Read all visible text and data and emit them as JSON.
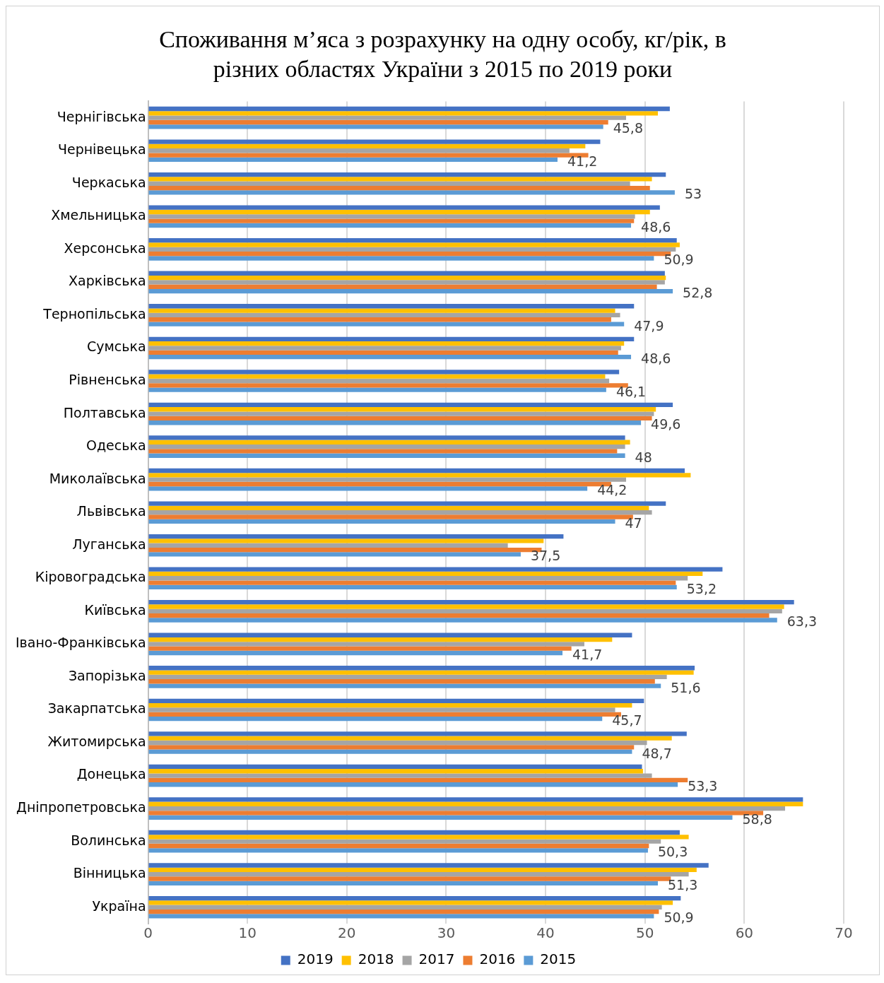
{
  "chart_data": {
    "type": "bar",
    "orientation": "horizontal",
    "title": "Споживання м’яса з розрахунку на одну особу, кг/рік, в різних областях України з 2015 по 2019 роки",
    "categories": [
      "Чернігівська",
      "Чернівецька",
      "Черкаська",
      "Хмельницька",
      "Херсонська",
      "Харківська",
      "Тернопільська",
      "Сумська",
      "Рівненська",
      "Полтавська",
      "Одеська",
      "Миколаївська",
      "Львівська",
      "Луганська",
      "Кіровоградська",
      "Київська",
      "Івано-Франківська",
      "Запорізька",
      "Закарпатська",
      "Житомирська",
      "Донецька",
      "Дніпропетровська",
      "Волинська",
      "Вінницька",
      "Україна"
    ],
    "series": [
      {
        "name": "2019",
        "color": "#4472c4",
        "values": [
          52.5,
          45.5,
          52.1,
          51.5,
          53.2,
          52.0,
          48.9,
          48.9,
          47.4,
          52.8,
          48.0,
          54.0,
          52.1,
          41.8,
          57.8,
          65.0,
          48.7,
          55.0,
          49.9,
          54.2,
          49.7,
          65.9,
          53.5,
          56.4,
          53.6
        ]
      },
      {
        "name": "2018",
        "color": "#ffc000",
        "values": [
          51.3,
          44.0,
          50.7,
          50.5,
          53.5,
          52.1,
          47.0,
          47.9,
          46.0,
          51.1,
          48.5,
          54.6,
          50.4,
          39.8,
          55.8,
          64.0,
          46.7,
          54.9,
          48.7,
          52.7,
          49.8,
          65.9,
          54.4,
          55.2,
          52.8
        ]
      },
      {
        "name": "2017",
        "color": "#a5a5a5",
        "values": [
          48.1,
          42.4,
          48.5,
          49.0,
          53.1,
          52.0,
          47.5,
          47.6,
          46.4,
          50.9,
          48.0,
          48.1,
          50.7,
          36.2,
          54.3,
          63.8,
          43.9,
          52.2,
          47.0,
          50.2,
          50.7,
          64.1,
          51.6,
          54.4,
          51.7
        ]
      },
      {
        "name": "2016",
        "color": "#ed7d31",
        "values": [
          46.3,
          44.3,
          50.5,
          48.9,
          52.6,
          51.2,
          46.6,
          47.3,
          48.3,
          50.7,
          47.2,
          46.6,
          48.8,
          39.6,
          53.1,
          62.5,
          42.6,
          51.0,
          47.6,
          48.9,
          54.3,
          61.9,
          50.4,
          52.6,
          51.4
        ]
      },
      {
        "name": "2015",
        "color": "#5b9bd5",
        "values": [
          45.8,
          41.2,
          53,
          48.6,
          50.9,
          52.8,
          47.9,
          48.6,
          46.1,
          49.6,
          48,
          44.2,
          47,
          37.5,
          53.2,
          63.3,
          41.7,
          51.6,
          45.7,
          48.7,
          53.3,
          58.8,
          50.3,
          51.3,
          50.9
        ],
        "value_labels": [
          "45,8",
          "41,2",
          "53",
          "48,6",
          "50,9",
          "52,8",
          "47,9",
          "48,6",
          "46,1",
          "49,6",
          "48",
          "44,2",
          "47",
          "37,5",
          "53,2",
          "63,3",
          "41,7",
          "51,6",
          "45,7",
          "48,7",
          "53,3",
          "58,8",
          "50,3",
          "51,3",
          "50,9"
        ]
      }
    ],
    "xlim": [
      0,
      70
    ],
    "xticks": [
      0,
      10,
      20,
      30,
      40,
      50,
      60,
      70
    ],
    "grid": "x",
    "legend": "bottom"
  }
}
